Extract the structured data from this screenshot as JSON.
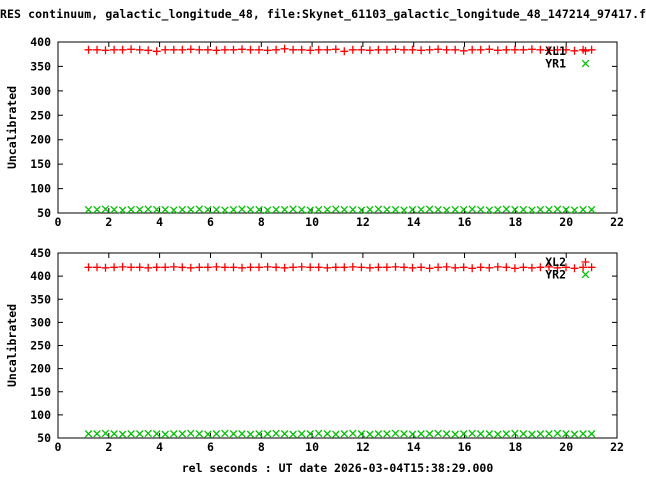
{
  "title": "RES continuum, galactic_longitude_48, file:Skynet_61103_galactic_longitude_48_147214_97417.f",
  "chart_data": [
    {
      "type": "scatter",
      "title": "",
      "xlabel": "",
      "ylabel": "Uncalibrated",
      "xlim": [
        0,
        22
      ],
      "ylim": [
        50,
        400
      ],
      "xtick_step": 2,
      "ytick_step": 50,
      "grid": false,
      "legend_position": "top-right-inside",
      "series": [
        {
          "name": "XL1",
          "marker": "plus",
          "color": "#ff0000",
          "x_start": 1.2,
          "x_step": 0.3356,
          "y": [
            384,
            384,
            383,
            384,
            384,
            385,
            384,
            383,
            381,
            384,
            384,
            384,
            385,
            384,
            384,
            383,
            384,
            384,
            385,
            384,
            384,
            383,
            384,
            386,
            384,
            384,
            383,
            384,
            384,
            385,
            381,
            384,
            384,
            383,
            384,
            384,
            385,
            384,
            384,
            383,
            384,
            385,
            384,
            384,
            382,
            384,
            384,
            385,
            383,
            384,
            384,
            384,
            385,
            384,
            383,
            384,
            384,
            382,
            384,
            384
          ]
        },
        {
          "name": "YR1",
          "marker": "x",
          "color": "#00c000",
          "x_start": 1.2,
          "x_step": 0.3356,
          "y": [
            57,
            57,
            58,
            57,
            56,
            57,
            57,
            58,
            57,
            57,
            56,
            57,
            57,
            58,
            57,
            57,
            56,
            57,
            58,
            57,
            57,
            56,
            57,
            57,
            58,
            57,
            56,
            57,
            57,
            58,
            57,
            57,
            56,
            57,
            58,
            57,
            57,
            56,
            57,
            57,
            58,
            57,
            56,
            57,
            57,
            58,
            57,
            56,
            57,
            58,
            57,
            57,
            56,
            57,
            57,
            58,
            57,
            56,
            57,
            57
          ]
        }
      ]
    },
    {
      "type": "scatter",
      "title": "",
      "xlabel": "rel seconds : UT date 2026-03-04T15:38:29.000",
      "ylabel": "Uncalibrated",
      "xlim": [
        0,
        22
      ],
      "ylim": [
        50,
        450
      ],
      "xtick_step": 2,
      "ytick_step": 50,
      "grid": false,
      "legend_position": "top-right-inside",
      "series": [
        {
          "name": "XL2",
          "marker": "plus",
          "color": "#ff0000",
          "x_start": 1.2,
          "x_step": 0.3356,
          "y": [
            419,
            419,
            418,
            419,
            420,
            419,
            419,
            418,
            419,
            419,
            420,
            419,
            418,
            419,
            419,
            420,
            419,
            419,
            418,
            419,
            419,
            420,
            419,
            418,
            419,
            420,
            419,
            419,
            418,
            419,
            419,
            420,
            419,
            418,
            419,
            419,
            420,
            419,
            418,
            419,
            417,
            419,
            420,
            418,
            419,
            417,
            419,
            418,
            420,
            419,
            417,
            419,
            418,
            419,
            420,
            418,
            419,
            417,
            419,
            419
          ]
        },
        {
          "name": "YR2",
          "marker": "x",
          "color": "#00c000",
          "x_start": 1.2,
          "x_step": 0.3356,
          "y": [
            59,
            59,
            60,
            59,
            58,
            59,
            59,
            60,
            59,
            58,
            59,
            59,
            60,
            59,
            58,
            59,
            60,
            59,
            59,
            58,
            59,
            59,
            60,
            59,
            58,
            59,
            59,
            60,
            59,
            58,
            59,
            60,
            59,
            58,
            59,
            59,
            60,
            59,
            58,
            59,
            59,
            60,
            59,
            58,
            59,
            60,
            59,
            59,
            58,
            59,
            60,
            59,
            58,
            59,
            59,
            60,
            59,
            58,
            59,
            59
          ]
        }
      ]
    }
  ]
}
